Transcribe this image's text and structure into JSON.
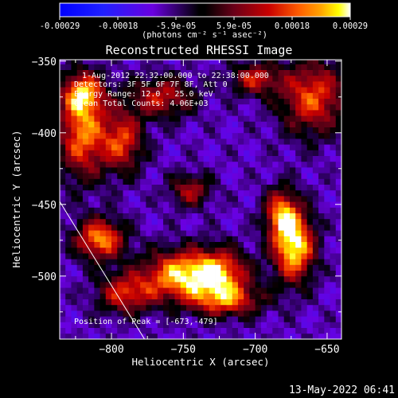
{
  "colorbar": {
    "ticks": [
      "-0.00029",
      "-0.00018",
      "-5.9e-05",
      "5.9e-05",
      "0.00018",
      "0.00029"
    ],
    "unit_label": "(photons cm⁻² s⁻¹ asec⁻²)",
    "range": [
      -0.00029,
      0.00029
    ],
    "colors": [
      "#0000ff",
      "#2020ff",
      "#6a00e0",
      "#000000",
      "#6a0018",
      "#c80000",
      "#ff5a00",
      "#ffa500",
      "#ffff00",
      "#ffffff"
    ]
  },
  "footer": {
    "timestamp": "13-May-2022 06:41"
  },
  "chart_data": {
    "type": "heatmap",
    "title": "Reconstructed RHESSI Image",
    "xlabel": "Heliocentric X (arcsec)",
    "ylabel": "Heliocentric Y (arcsec)",
    "xlim": [
      -836,
      -640
    ],
    "ylim": [
      -544,
      -349
    ],
    "xticks": [
      -800,
      -750,
      -700,
      -650
    ],
    "yticks": [
      -350,
      -400,
      -450,
      -500
    ],
    "info_lines": [
      "1-Aug-2012 22:32:00.000 to 22:38:00.000",
      "Detectors: 3F 5F 6F 7F 8F, Att 0",
      "Energy Range: 12.0 - 25.0 keV",
      "Clean    Total Counts: 4.06E+03"
    ],
    "peak_label": "Position of Peak = [-673,-479]",
    "peak": [
      -673,
      -479
    ],
    "limb_line": {
      "x": [
        -836,
        -777
      ],
      "y": [
        -448,
        -544
      ]
    },
    "sources": [
      {
        "x": -820,
        "y": -400,
        "sx": 12,
        "sy": 22,
        "amp": 0.0002
      },
      {
        "x": -792,
        "y": -406,
        "sx": 10,
        "sy": 15,
        "amp": 0.00015
      },
      {
        "x": -808,
        "y": -474,
        "sx": 12,
        "sy": 10,
        "amp": 0.00022
      },
      {
        "x": -790,
        "y": -512,
        "sx": 14,
        "sy": 10,
        "amp": 0.00014
      },
      {
        "x": -752,
        "y": -499,
        "sx": 18,
        "sy": 12,
        "amp": 0.00024
      },
      {
        "x": -724,
        "y": -498,
        "sx": 14,
        "sy": 12,
        "amp": 0.00018
      },
      {
        "x": -720,
        "y": -517,
        "sx": 18,
        "sy": 8,
        "amp": 0.00014
      },
      {
        "x": -673,
        "y": -479,
        "sx": 10,
        "sy": 17,
        "amp": 0.00029
      },
      {
        "x": -682,
        "y": -456,
        "sx": 8,
        "sy": 12,
        "amp": 0.00017
      },
      {
        "x": -660,
        "y": -375,
        "sx": 16,
        "sy": 18,
        "amp": 0.00017
      },
      {
        "x": -700,
        "y": -362,
        "sx": 12,
        "sy": 8,
        "amp": 0.00012
      },
      {
        "x": -765,
        "y": -375,
        "sx": 16,
        "sy": 10,
        "amp": 0.00012
      },
      {
        "x": -745,
        "y": -440,
        "sx": 10,
        "sy": 8,
        "amp": 0.0001
      },
      {
        "x": -820,
        "y": -372,
        "sx": 10,
        "sy": 10,
        "amp": 0.00016
      }
    ],
    "background_level": -9e-05
  }
}
